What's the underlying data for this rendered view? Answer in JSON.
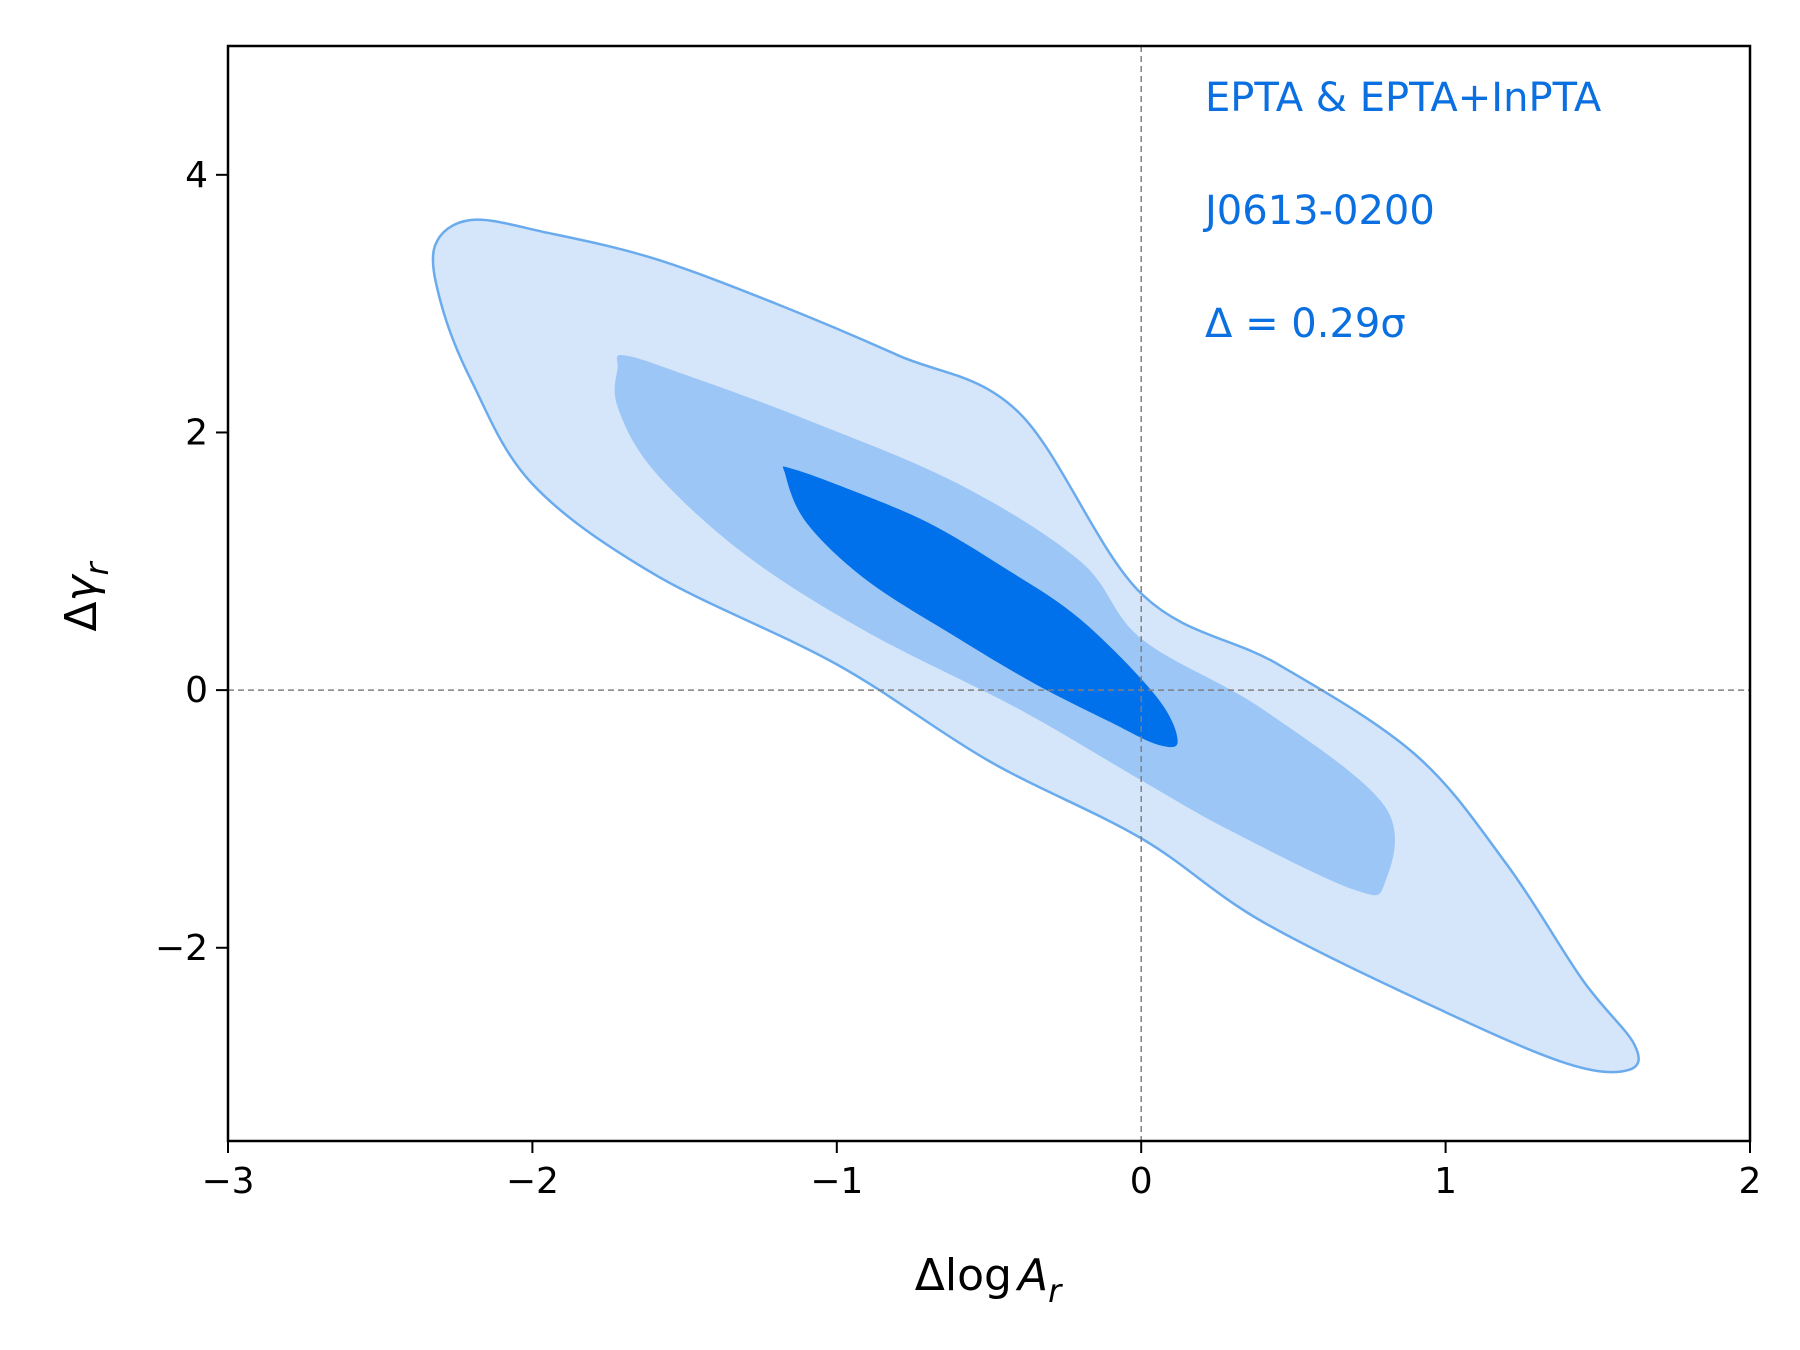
{
  "chart_data": {
    "type": "contour",
    "title": "",
    "xlabel_main": "Δlog",
    "xlabel_var": "A",
    "xlabel_sub": "r",
    "ylabel_main": "Δ",
    "ylabel_var": "γ",
    "ylabel_sub": "r",
    "xlim": [
      -3,
      2
    ],
    "ylim": [
      -3.5,
      5
    ],
    "xticks": [
      -3,
      -2,
      -1,
      0,
      1,
      2
    ],
    "xtick_labels": [
      "−3",
      "−2",
      "−1",
      "0",
      "1",
      "2"
    ],
    "yticks": [
      -2,
      0,
      2,
      4
    ],
    "ytick_labels": [
      "−2",
      "0",
      "2",
      "4"
    ],
    "reference_lines": {
      "x": 0,
      "y": 0,
      "style": "dashed",
      "color": "#808080"
    },
    "annotations": {
      "line1": "EPTA & EPTA+InPTA",
      "line2": "J0613-0200",
      "line3": "Δ = 0.29σ",
      "color": "#0a6fe0",
      "placement": "top-right"
    },
    "contours": [
      {
        "level": "outer",
        "fill": "#d5e6fb",
        "stroke": "#6aabee",
        "points": [
          [
            -2.32,
            3.45
          ],
          [
            -2.2,
            3.65
          ],
          [
            -1.95,
            3.55
          ],
          [
            -1.6,
            3.35
          ],
          [
            -1.2,
            3.0
          ],
          [
            -0.8,
            2.6
          ],
          [
            -0.4,
            2.15
          ],
          [
            0.0,
            0.75
          ],
          [
            0.45,
            0.2
          ],
          [
            0.9,
            -0.5
          ],
          [
            1.2,
            -1.35
          ],
          [
            1.45,
            -2.25
          ],
          [
            1.62,
            -2.75
          ],
          [
            1.6,
            -2.95
          ],
          [
            1.4,
            -2.9
          ],
          [
            1.0,
            -2.5
          ],
          [
            0.4,
            -1.8
          ],
          [
            0.0,
            -1.15
          ],
          [
            -0.5,
            -0.55
          ],
          [
            -1.0,
            0.2
          ],
          [
            -1.6,
            0.9
          ],
          [
            -2.0,
            1.6
          ],
          [
            -2.2,
            2.4
          ],
          [
            -2.3,
            3.0
          ]
        ]
      },
      {
        "level": "middle",
        "fill": "#9cc6f6",
        "stroke": "none",
        "points": [
          [
            -1.72,
            2.5
          ],
          [
            -1.7,
            2.6
          ],
          [
            -1.5,
            2.45
          ],
          [
            -1.1,
            2.1
          ],
          [
            -0.6,
            1.6
          ],
          [
            -0.2,
            1.0
          ],
          [
            0.0,
            0.4
          ],
          [
            0.4,
            -0.15
          ],
          [
            0.8,
            -0.9
          ],
          [
            0.8,
            -1.5
          ],
          [
            0.7,
            -1.55
          ],
          [
            0.3,
            -1.1
          ],
          [
            0.0,
            -0.7
          ],
          [
            -0.4,
            -0.15
          ],
          [
            -0.9,
            0.45
          ],
          [
            -1.3,
            1.05
          ],
          [
            -1.6,
            1.7
          ],
          [
            -1.72,
            2.2
          ]
        ]
      },
      {
        "level": "inner",
        "fill": "#0070eb",
        "stroke": "none",
        "points": [
          [
            -1.17,
            1.68
          ],
          [
            -1.15,
            1.72
          ],
          [
            -0.95,
            1.55
          ],
          [
            -0.7,
            1.3
          ],
          [
            -0.45,
            0.95
          ],
          [
            -0.2,
            0.55
          ],
          [
            0.05,
            -0.05
          ],
          [
            0.12,
            -0.4
          ],
          [
            0.05,
            -0.42
          ],
          [
            -0.1,
            -0.25
          ],
          [
            -0.35,
            0.05
          ],
          [
            -0.6,
            0.4
          ],
          [
            -0.9,
            0.85
          ],
          [
            -1.1,
            1.3
          ]
        ]
      }
    ]
  }
}
